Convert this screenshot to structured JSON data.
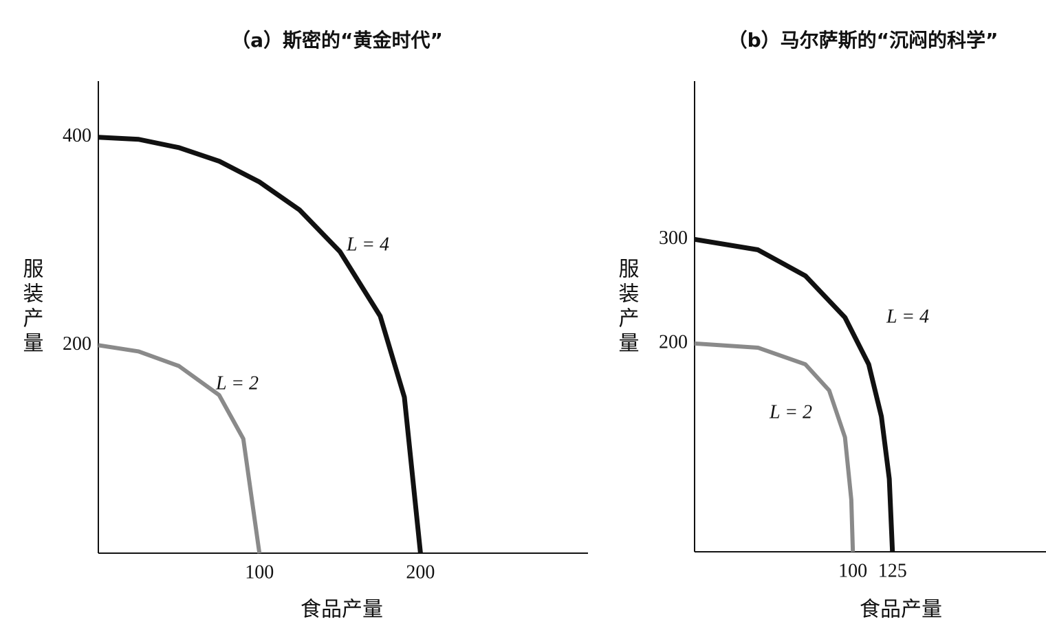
{
  "chart_data": [
    {
      "type": "line",
      "title": "（a）斯密的“黄金时代”",
      "x_label": "食品产量",
      "y_label": "服装产量",
      "xlim": [
        0,
        304
      ],
      "ylim": [
        0,
        454
      ],
      "xticks": [
        100,
        200
      ],
      "yticks": [
        200,
        400
      ],
      "series": [
        {
          "name": "L = 4",
          "color": "#111111",
          "x": [
            0,
            25,
            50,
            75,
            100,
            125,
            150,
            175,
            190,
            200
          ],
          "values": [
            400,
            398,
            390,
            377,
            357,
            330,
            290,
            228,
            150,
            0
          ]
        },
        {
          "name": "L = 2",
          "color": "#8a8a8a",
          "x": [
            0,
            25,
            50,
            75,
            90,
            100
          ],
          "values": [
            200,
            194,
            180,
            152,
            110,
            0
          ]
        }
      ]
    },
    {
      "type": "line",
      "title": "（b）马尔萨斯的“沉闷的科学”",
      "x_label": "食品产量",
      "y_label": "服装产量",
      "xlim": [
        0,
        222
      ],
      "ylim": [
        0,
        452
      ],
      "xticks": [
        100,
        125
      ],
      "yticks": [
        200,
        300
      ],
      "series": [
        {
          "name": "L = 4",
          "color": "#111111",
          "x": [
            0,
            40,
            70,
            95,
            110,
            118,
            123,
            125
          ],
          "values": [
            300,
            290,
            265,
            225,
            180,
            130,
            70,
            0
          ]
        },
        {
          "name": "L = 2",
          "color": "#8a8a8a",
          "x": [
            0,
            40,
            70,
            85,
            95,
            99,
            100
          ],
          "values": [
            200,
            196,
            180,
            155,
            110,
            50,
            0
          ]
        }
      ]
    }
  ]
}
